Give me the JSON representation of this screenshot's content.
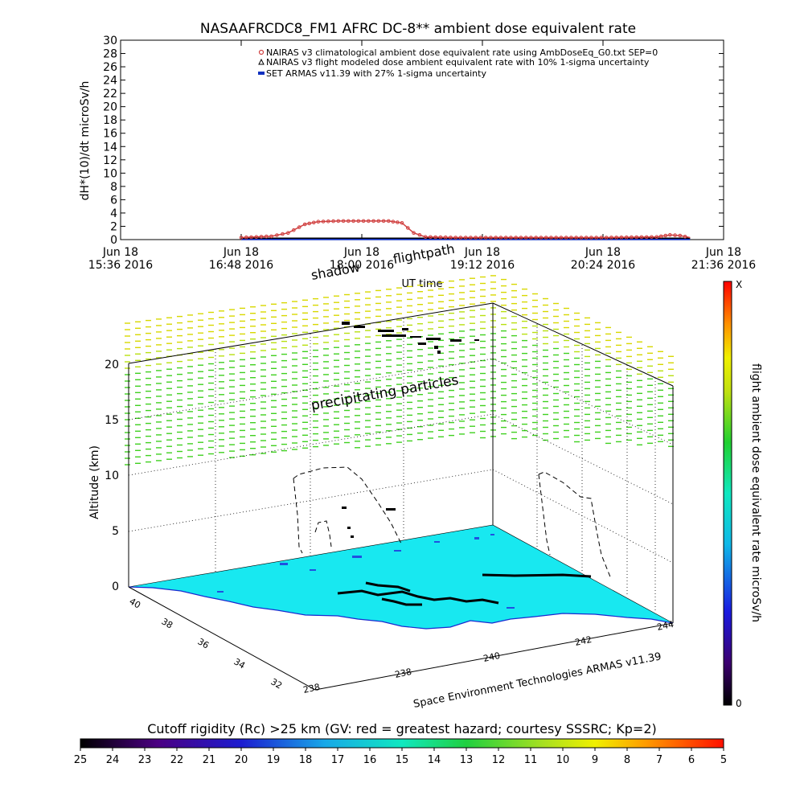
{
  "chart_data": [
    {
      "type": "line",
      "title": "NASAAFRCDC8_FM1 AFRC DC-8** ambient dose equivalent rate",
      "ylabel": "dH*(10)/dt microSv/h",
      "xlabel": "UT time",
      "ylim": [
        0,
        30
      ],
      "yticks": [
        "0",
        "2",
        "4",
        "6",
        "8",
        "10",
        "12",
        "14",
        "16",
        "18",
        "20",
        "22",
        "24",
        "26",
        "28",
        "30"
      ],
      "xticks": [
        {
          "day": "Jun 18",
          "time": "15:36 2016"
        },
        {
          "day": "Jun 18",
          "time": "16:48 2016"
        },
        {
          "day": "Jun 18",
          "time": "18:00 2016"
        },
        {
          "day": "Jun 18",
          "time": "19:12 2016"
        },
        {
          "day": "Jun 18",
          "time": "20:24 2016"
        },
        {
          "day": "Jun 18",
          "time": "21:36 2016"
        }
      ],
      "xlim_minutes": [
        0,
        360
      ],
      "legend": "top-right",
      "series": [
        {
          "name": "NAIRAS v3 climatological ambient dose equivalent rate using AmbDoseEq_G0.txt SEP=0",
          "color": "#d04040",
          "points": [
            [
              72,
              0.3
            ],
            [
              90,
              0.5
            ],
            [
              100,
              1.0
            ],
            [
              110,
              2.3
            ],
            [
              118,
              2.7
            ],
            [
              130,
              2.8
            ],
            [
              145,
              2.8
            ],
            [
              160,
              2.8
            ],
            [
              168,
              2.5
            ],
            [
              175,
              1.0
            ],
            [
              182,
              0.4
            ],
            [
              200,
              0.3
            ],
            [
              230,
              0.3
            ],
            [
              260,
              0.3
            ],
            [
              290,
              0.3
            ],
            [
              320,
              0.4
            ],
            [
              328,
              0.7
            ],
            [
              334,
              0.6
            ],
            [
              340,
              0.3
            ]
          ]
        },
        {
          "name": "NAIRAS v3 flight modeled dose ambient equivalent rate with 10% 1-sigma uncertainty",
          "color": "#000000",
          "points": [
            [
              72,
              0.2
            ],
            [
              340,
              0.2
            ]
          ]
        },
        {
          "name": "SET ARMAS v11.39 with 27% 1-sigma uncertainty",
          "color": "#1030c0",
          "points": [
            [
              72,
              0.1
            ],
            [
              340,
              0.1
            ]
          ]
        }
      ]
    },
    {
      "type": "heatmap",
      "ylabel": "Altitude (km)",
      "xlabel": "Space Environment Technologies ARMAS v11.39",
      "altitude_ticks": [
        "0",
        "5",
        "10",
        "15",
        "20"
      ],
      "longitude_ticks": [
        "238",
        "240",
        "242",
        "244"
      ],
      "latitude_ticks": [
        "32",
        "34",
        "36",
        "38",
        "40"
      ],
      "annotations": [
        "shadow",
        "flightpath",
        "precipitating particles"
      ],
      "colorbar_label": "flight ambient dose equivalent rate microSv/h",
      "colorbar_top": "X",
      "colorbar_bottom": "0"
    },
    {
      "type": "heatmap",
      "title": "Cutoff rigidity (Rc) >25 km (GV: red = greatest hazard; courtesy SSSRC; Kp=2)",
      "ticks": [
        "25",
        "24",
        "23",
        "22",
        "21",
        "20",
        "19",
        "18",
        "17",
        "16",
        "15",
        "14",
        "13",
        "12",
        "11",
        "10",
        "9",
        "8",
        "7",
        "6",
        "5"
      ]
    }
  ]
}
